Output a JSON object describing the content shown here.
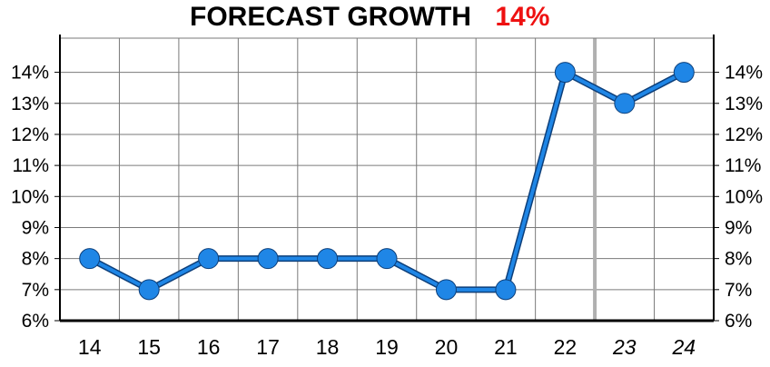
{
  "chart_data": {
    "type": "line",
    "title": "FORECAST GROWTH",
    "title_value": "14%",
    "title_value_color": "#ee1111",
    "x": [
      "14",
      "15",
      "16",
      "17",
      "18",
      "19",
      "20",
      "21",
      "22",
      "23",
      "24"
    ],
    "forecast_categories": [
      "23",
      "24"
    ],
    "series": [
      {
        "values": [
          8,
          7,
          8,
          8,
          8,
          8,
          7,
          7,
          14,
          13,
          14
        ],
        "color": "#1f86e6"
      }
    ],
    "y_ticks": [
      "6%",
      "7%",
      "8%",
      "9%",
      "10%",
      "11%",
      "12%",
      "13%",
      "14%"
    ],
    "ylim": [
      6,
      15.1
    ],
    "grid": true,
    "xlabel": "",
    "ylabel": ""
  }
}
